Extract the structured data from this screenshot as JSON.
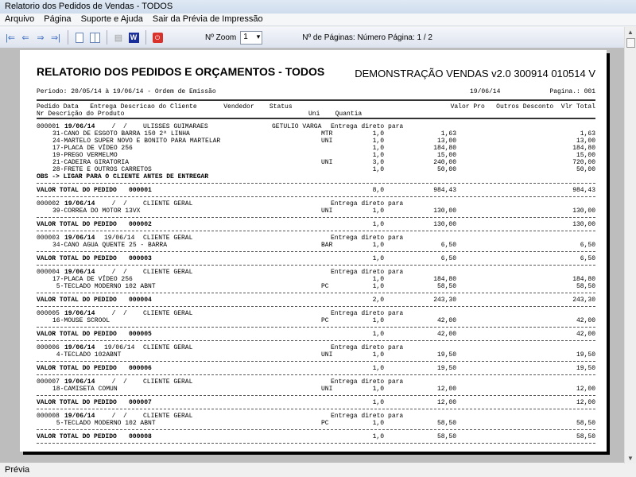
{
  "window": {
    "title": "Relatorio dos Pedidos de Vendas - TODOS"
  },
  "menu": [
    "Arquivo",
    "Página",
    "Suporte e Ajuda",
    "Sair da Prévia de Impressão"
  ],
  "toolbar": {
    "zoom_label": "Nº Zoom",
    "zoom_value": "1",
    "pages_label": "Nº de Páginas: Número Página: 1 / 2",
    "icons": [
      "first-page-icon",
      "prev-page-icon",
      "next-page-icon",
      "last-page-icon",
      "single-page-icon",
      "two-pages-icon",
      "print-icon",
      "word-export-icon",
      "exit-icon"
    ]
  },
  "status": "Prévia",
  "report": {
    "title": "RELATORIO DOS PEDIDOS E ORÇAMENTOS - TODOS",
    "subtitle": "DEMONSTRAÇÃO VENDAS v2.0 300914 010514 V",
    "period": "Periodo: 20/05/14 à 19/06/14 - Ordem de Emissão",
    "date": "19/06/14",
    "page": "Pagina.: 001",
    "header1": "Pedido Data   Entrega Descricao do Cliente       Vendedor    Status",
    "header1_right": "Valor Pro   Outros Desconto  Vlr Total",
    "header2": "Nr Descrição do Produto",
    "header2_right": "Uni    Quantia",
    "total_label": "VALOR TOTAL DO PEDIDO",
    "orders": [
      {
        "num": "000001",
        "date": "19/06/14",
        "entrega": "  /  /  ",
        "client": "ULISSES GUIMARAES",
        "seller": "GETULIO VARGA",
        "status": "Entrega direto para",
        "items": [
          {
            "desc": "31-CANO DE ESGOTO BARRA 150 2ª LINHA",
            "uni": "MTR",
            "qty": "1,0",
            "price": "1,63",
            "total": "1,63"
          },
          {
            "desc": "24-MARTELO SUPER NOVO E BONITO PARA MARTELAR",
            "uni": "UNI",
            "qty": "1,0",
            "price": "13,00",
            "total": "13,00"
          },
          {
            "desc": "17-PLACA DE VÍDEO 256",
            "uni": "",
            "qty": "1,0",
            "price": "184,80",
            "total": "184,80"
          },
          {
            "desc": "19-PREGO VERMELMO",
            "uni": "",
            "qty": "1,0",
            "price": "15,00",
            "total": "15,00"
          },
          {
            "desc": "21-CADEIRA GIRATORIA",
            "uni": "UNI",
            "qty": "3,0",
            "price": "240,00",
            "total": "720,00"
          },
          {
            "desc": "28-FRETE E OUTROS CARRETOS",
            "uni": "",
            "qty": "1,0",
            "price": "50,00",
            "total": "50,00"
          }
        ],
        "obs": "OBS -> LIGAR PARA O CLIENTE ANTES DE ENTREGAR",
        "tot_qty": "8,0",
        "tot_price": "984,43",
        "tot_total": "984,43"
      },
      {
        "num": "000002",
        "date": "19/06/14",
        "entrega": "  /  /  ",
        "client": "CLIENTE GERAL",
        "seller": "",
        "status": "Entrega direto para",
        "items": [
          {
            "desc": "39-CORREA DO MOTOR 13VX",
            "uni": "UNI",
            "qty": "1,0",
            "price": "130,00",
            "total": "130,00"
          }
        ],
        "tot_qty": "1,0",
        "tot_price": "130,00",
        "tot_total": "130,00"
      },
      {
        "num": "000003",
        "date": "19/06/14",
        "entrega": "19/06/14",
        "client": "CLIENTE GERAL",
        "seller": "",
        "status": "Entrega direto para",
        "items": [
          {
            "desc": "34-CANO AGUA QUENTE 25 - BARRA",
            "uni": "BAR",
            "qty": "1,0",
            "price": "6,50",
            "total": "6,50"
          }
        ],
        "tot_qty": "1,0",
        "tot_price": "6,50",
        "tot_total": "6,50"
      },
      {
        "num": "000004",
        "date": "19/06/14",
        "entrega": "  /  /  ",
        "client": "CLIENTE GERAL",
        "seller": "",
        "status": "Entrega direto para",
        "items": [
          {
            "desc": "17-PLACA DE VÍDEO 256",
            "uni": "",
            "qty": "1,0",
            "price": "184,80",
            "total": "184,80"
          },
          {
            "desc": " 5-TECLADO MODERNO 102 ABNT",
            "uni": "PC",
            "qty": "1,0",
            "price": "58,50",
            "total": "58,50"
          }
        ],
        "tot_qty": "2,0",
        "tot_price": "243,30",
        "tot_total": "243,30"
      },
      {
        "num": "000005",
        "date": "19/06/14",
        "entrega": "  /  /  ",
        "client": "CLIENTE GERAL",
        "seller": "",
        "status": "Entrega direto para",
        "items": [
          {
            "desc": "16-MOUSE SCROOL",
            "uni": "PC",
            "qty": "1,0",
            "price": "42,00",
            "total": "42,00"
          }
        ],
        "tot_qty": "1,0",
        "tot_price": "42,00",
        "tot_total": "42,00"
      },
      {
        "num": "000006",
        "date": "19/06/14",
        "entrega": "19/06/14",
        "client": "CLIENTE GERAL",
        "seller": "",
        "status": "Entrega direto para",
        "items": [
          {
            "desc": " 4-TECLADO 102ABNT",
            "uni": "UNI",
            "qty": "1,0",
            "price": "19,50",
            "total": "19,50"
          }
        ],
        "tot_qty": "1,0",
        "tot_price": "19,50",
        "tot_total": "19,50"
      },
      {
        "num": "000007",
        "date": "19/06/14",
        "entrega": "  /  /  ",
        "client": "CLIENTE GERAL",
        "seller": "",
        "status": "Entrega direto para",
        "items": [
          {
            "desc": "18-CAMISETA COMUN",
            "uni": "UNI",
            "qty": "1,0",
            "price": "12,00",
            "total": "12,00"
          }
        ],
        "tot_qty": "1,0",
        "tot_price": "12,00",
        "tot_total": "12,00"
      },
      {
        "num": "000008",
        "date": "19/06/14",
        "entrega": "  /  /  ",
        "client": "CLIENTE GERAL",
        "seller": "",
        "status": "Entrega direto para",
        "items": [
          {
            "desc": " 5-TECLADO MODERNO 102 ABNT",
            "uni": "PC",
            "qty": "1,0",
            "price": "58,50",
            "total": "58,50"
          }
        ],
        "tot_qty": "1,0",
        "tot_price": "58,50",
        "tot_total": "58,50"
      }
    ]
  }
}
